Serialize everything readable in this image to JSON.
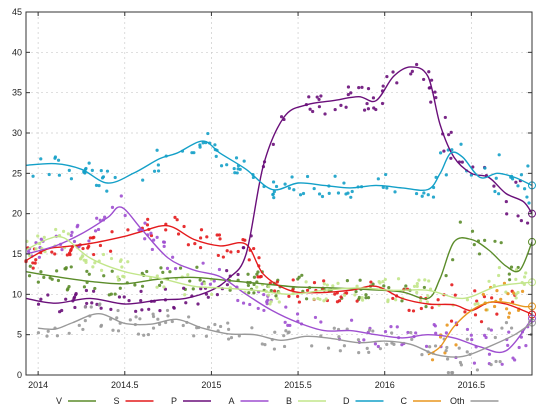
{
  "chart_data": {
    "type": "line",
    "title": "",
    "xlabel": "",
    "ylabel": "",
    "xlim": [
      2013.93,
      2016.85
    ],
    "ylim": [
      0,
      45
    ],
    "grid": true,
    "legend_position": "bottom",
    "x_ticks": [
      {
        "value": 2014.0,
        "label": "2014"
      },
      {
        "value": 2014.5,
        "label": "2014.5"
      },
      {
        "value": 2015.0,
        "label": "2015"
      },
      {
        "value": 2015.5,
        "label": "2015.5"
      },
      {
        "value": 2016.0,
        "label": "2016"
      },
      {
        "value": 2016.5,
        "label": "2016.5"
      }
    ],
    "y_ticks": [
      {
        "value": 0,
        "label": "0"
      },
      {
        "value": 5,
        "label": "5"
      },
      {
        "value": 10,
        "label": "10"
      },
      {
        "value": 15,
        "label": "15"
      },
      {
        "value": 20,
        "label": "20"
      },
      {
        "value": 25,
        "label": "25"
      },
      {
        "value": 30,
        "label": "30"
      },
      {
        "value": 35,
        "label": "35"
      },
      {
        "value": 40,
        "label": "40"
      },
      {
        "value": 45,
        "label": "45"
      }
    ],
    "series": [
      {
        "name": "V",
        "color": "#5b8c2a",
        "x": [
          2013.93,
          2014.1,
          2014.3,
          2014.5,
          2014.7,
          2014.9,
          2015.1,
          2015.3,
          2015.5,
          2015.7,
          2015.9,
          2016.1,
          2016.25,
          2016.32,
          2016.4,
          2016.5,
          2016.6,
          2016.7,
          2016.78,
          2016.85
        ],
        "values": [
          12.8,
          12.2,
          11.6,
          11.3,
          11.9,
          12.1,
          11.7,
          11.3,
          10.9,
          10.8,
          10.6,
          10.3,
          9.5,
          12.0,
          16.5,
          16.8,
          15.5,
          13.5,
          13.0,
          16.5
        ]
      },
      {
        "name": "S",
        "color": "#e41a1c",
        "x": [
          2013.93,
          2014.05,
          2014.15,
          2014.3,
          2014.5,
          2014.6,
          2014.75,
          2014.9,
          2015.05,
          2015.2,
          2015.3,
          2015.45,
          2015.6,
          2015.8,
          2015.95,
          2016.1,
          2016.25,
          2016.4,
          2016.5,
          2016.6,
          2016.7,
          2016.8,
          2016.85
        ],
        "values": [
          14.2,
          15.6,
          15.9,
          16.3,
          17.2,
          17.8,
          18.5,
          16.8,
          16.0,
          16.2,
          12.5,
          10.5,
          10.2,
          10.5,
          11.0,
          9.5,
          8.8,
          8.7,
          8.0,
          9.0,
          8.8,
          8.0,
          7.5
        ]
      },
      {
        "name": "P",
        "color": "#6a0f7a",
        "x": [
          2013.93,
          2014.1,
          2014.3,
          2014.5,
          2014.7,
          2014.85,
          2015.0,
          2015.1,
          2015.2,
          2015.3,
          2015.42,
          2015.55,
          2015.7,
          2015.85,
          2015.95,
          2016.05,
          2016.15,
          2016.25,
          2016.32,
          2016.4,
          2016.5,
          2016.6,
          2016.7,
          2016.8,
          2016.85
        ],
        "values": [
          9.5,
          8.9,
          9.5,
          8.8,
          9.3,
          9.5,
          10.5,
          12.0,
          15.0,
          26.0,
          32.0,
          33.5,
          34.0,
          34.5,
          34.0,
          37.0,
          38.2,
          37.0,
          31.0,
          27.0,
          25.0,
          24.5,
          22.5,
          21.5,
          20.0
        ]
      },
      {
        "name": "A",
        "color": "#9e4fd0",
        "x": [
          2013.93,
          2014.1,
          2014.25,
          2014.4,
          2014.48,
          2014.6,
          2014.75,
          2014.9,
          2015.05,
          2015.2,
          2015.35,
          2015.5,
          2015.65,
          2015.8,
          2015.95,
          2016.1,
          2016.25,
          2016.4,
          2016.55,
          2016.7,
          2016.85
        ],
        "values": [
          15.0,
          16.0,
          17.5,
          19.5,
          20.8,
          18.0,
          14.5,
          13.0,
          12.2,
          10.0,
          8.0,
          6.5,
          5.5,
          5.5,
          5.0,
          4.6,
          5.0,
          4.6,
          3.5,
          3.0,
          7.0
        ]
      },
      {
        "name": "B",
        "color": "#c2e68a",
        "x": [
          2013.93,
          2014.05,
          2014.15,
          2014.3,
          2014.5,
          2014.7,
          2014.9,
          2015.05,
          2015.25,
          2015.45,
          2015.65,
          2015.85,
          2016.05,
          2016.25,
          2016.45,
          2016.65,
          2016.85
        ],
        "values": [
          15.5,
          16.8,
          17.0,
          14.5,
          12.8,
          12.0,
          11.0,
          10.8,
          10.5,
          10.0,
          10.5,
          10.8,
          10.5,
          10.5,
          9.5,
          11.0,
          11.5
        ]
      },
      {
        "name": "D",
        "color": "#14a0c8",
        "x": [
          2013.93,
          2014.1,
          2014.25,
          2014.4,
          2014.55,
          2014.7,
          2014.8,
          2014.95,
          2015.05,
          2015.2,
          2015.35,
          2015.5,
          2015.65,
          2015.8,
          2015.95,
          2016.1,
          2016.25,
          2016.32,
          2016.38,
          2016.45,
          2016.55,
          2016.65,
          2016.75,
          2016.85
        ],
        "values": [
          26.0,
          26.2,
          25.5,
          23.8,
          25.0,
          26.8,
          27.5,
          29.0,
          27.5,
          25.5,
          23.0,
          23.8,
          23.5,
          23.2,
          23.5,
          23.2,
          23.0,
          25.0,
          27.5,
          27.0,
          24.5,
          25.0,
          24.5,
          23.5
        ]
      },
      {
        "name": "C",
        "color": "#e8961e",
        "x": [
          2016.25,
          2016.32,
          2016.4,
          2016.5,
          2016.6,
          2016.7,
          2016.8,
          2016.85
        ],
        "values": [
          2.5,
          3.5,
          6.0,
          8.0,
          9.0,
          9.0,
          8.5,
          8.5
        ]
      },
      {
        "name": "Oth",
        "color": "#999999",
        "x": [
          2014.0,
          2014.1,
          2014.2,
          2014.35,
          2014.5,
          2014.65,
          2014.8,
          2014.95,
          2015.1,
          2015.25,
          2015.4,
          2015.55,
          2015.7,
          2015.85,
          2016.0,
          2016.15,
          2016.3,
          2016.45,
          2016.6,
          2016.75,
          2016.85
        ],
        "values": [
          5.8,
          5.7,
          6.5,
          7.6,
          6.4,
          6.3,
          6.9,
          5.8,
          5.1,
          5.0,
          4.3,
          4.8,
          4.5,
          4.0,
          4.2,
          3.8,
          2.5,
          2.3,
          3.5,
          5.0,
          6.5
        ]
      }
    ]
  }
}
